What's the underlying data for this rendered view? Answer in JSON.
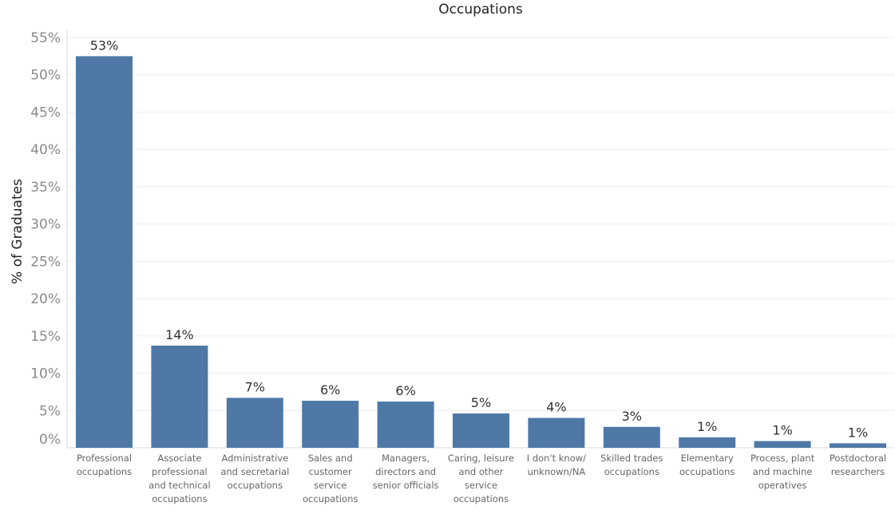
{
  "chart_data": {
    "type": "bar",
    "title": "Occupations",
    "ylabel": "% of Graduates",
    "xlabel": "",
    "ylim": [
      0,
      55
    ],
    "yticks": [
      "0%",
      "5%",
      "10%",
      "15%",
      "20%",
      "25%",
      "30%",
      "35%",
      "40%",
      "45%",
      "50%",
      "55%"
    ],
    "grid": true,
    "categories": [
      [
        "Professional",
        "occupations"
      ],
      [
        "Associate",
        "professional",
        "and technical",
        "occupations"
      ],
      [
        "Administrative",
        "and secretarial",
        "occupations"
      ],
      [
        "Sales and",
        "customer",
        "service",
        "occupations"
      ],
      [
        "Managers,",
        "directors and",
        "senior officials"
      ],
      [
        "Caring, leisure",
        "and other",
        "service",
        "occupations"
      ],
      [
        "I don't know/",
        "unknown/NA"
      ],
      [
        "Skilled trades",
        "occupations"
      ],
      [
        "Elementary",
        "occupations"
      ],
      [
        "Process, plant",
        "and machine",
        "operatives"
      ],
      [
        "Postdoctoral",
        "researchers"
      ]
    ],
    "values": [
      52.5,
      13.7,
      6.7,
      6.3,
      6.2,
      4.6,
      4.0,
      2.8,
      1.4,
      0.9,
      0.6
    ],
    "data_labels": [
      "53%",
      "14%",
      "7%",
      "6%",
      "6%",
      "5%",
      "4%",
      "3%",
      "1%",
      "1%",
      "1%"
    ],
    "bar_color": "#4e79a7"
  }
}
